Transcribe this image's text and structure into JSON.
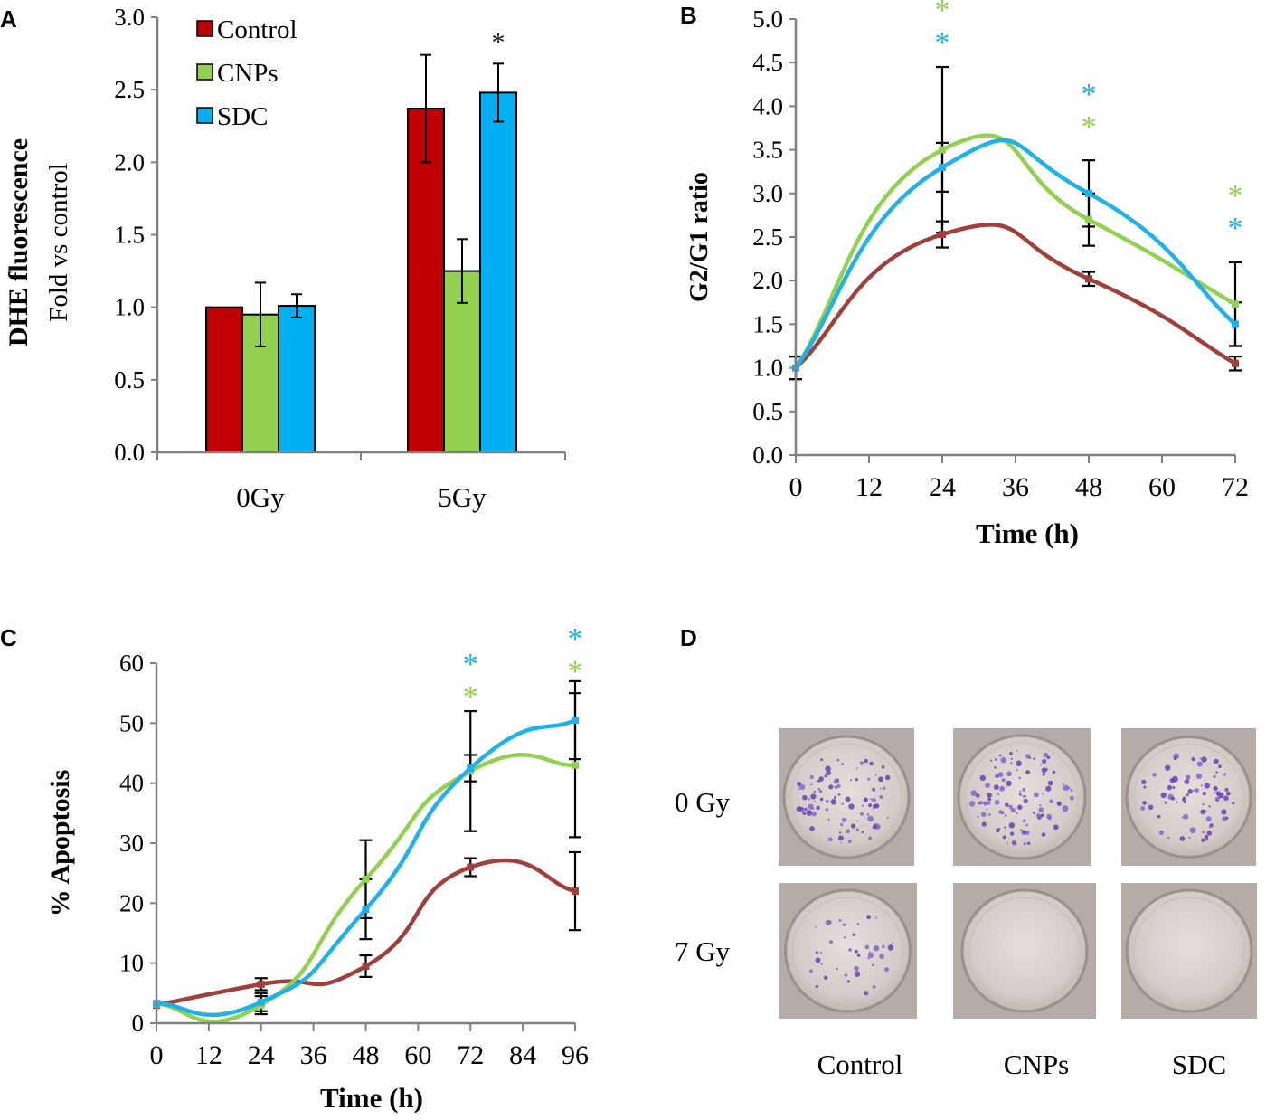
{
  "panel_labels": [
    "A",
    "B",
    "C",
    "D"
  ],
  "colors": {
    "control_bar": "#c00000",
    "cnps_bar": "#92d050",
    "sdc_bar": "#00b0f0",
    "control_line": "#a0403a",
    "cnps_line": "#92d050",
    "sdc_line": "#1fb1ea",
    "axis": "#808080"
  },
  "chart_data": [
    {
      "panel": "A",
      "type": "bar",
      "ylabel_bold": "DHE fluorescence",
      "ylabel_sub": "Fold vs control",
      "xlabel": "",
      "ylim": [
        0,
        3.0
      ],
      "yticks": [
        "0.0",
        "0.5",
        "1.0",
        "1.5",
        "2.0",
        "2.5",
        "3.0"
      ],
      "categories": [
        "0Gy",
        "5Gy"
      ],
      "legend": [
        "Control",
        "CNPs",
        "SDC"
      ],
      "series": [
        {
          "name": "Control",
          "values": [
            1.0,
            2.37
          ],
          "errors": [
            0.0,
            0.37
          ]
        },
        {
          "name": "CNPs",
          "values": [
            0.95,
            1.25
          ],
          "errors": [
            0.22,
            0.22
          ]
        },
        {
          "name": "SDC",
          "values": [
            1.01,
            2.48
          ],
          "errors": [
            0.08,
            0.2
          ]
        }
      ],
      "annotations": [
        {
          "text": "*",
          "category": "5Gy",
          "series": "SDC",
          "color": "#1a1a1a"
        }
      ]
    },
    {
      "panel": "B",
      "type": "line",
      "ylabel": "G2/G1  ratio",
      "xlabel": "Time (h)",
      "xlim": [
        0,
        72
      ],
      "ylim": [
        0,
        5.0
      ],
      "xticks": [
        "0",
        "12",
        "24",
        "36",
        "48",
        "60",
        "72"
      ],
      "yticks": [
        "0.0",
        "0.5",
        "1.0",
        "1.5",
        "2.0",
        "2.5",
        "3.0",
        "3.5",
        "4.0",
        "4.5",
        "5.0"
      ],
      "series": [
        {
          "name": "Control",
          "x": [
            0,
            24,
            48,
            72
          ],
          "y": [
            1.0,
            2.53,
            2.02,
            1.05
          ],
          "errors": [
            0.13,
            0.15,
            0.08,
            0.08
          ]
        },
        {
          "name": "CNPs",
          "x": [
            0,
            24,
            48,
            72
          ],
          "y": [
            1.0,
            3.5,
            2.7,
            1.73
          ],
          "errors": [
            0.13,
            0.95,
            0.3,
            0.48
          ]
        },
        {
          "name": "SDC",
          "x": [
            0,
            24,
            48,
            72
          ],
          "y": [
            1.0,
            3.3,
            3.0,
            1.5
          ],
          "errors": [
            0.13,
            0.28,
            0.38,
            0.25
          ]
        }
      ],
      "annotations": [
        {
          "text": "*",
          "x": 24,
          "row": 0,
          "series": "CNPs"
        },
        {
          "text": "*",
          "x": 24,
          "row": 1,
          "series": "SDC"
        },
        {
          "text": "*",
          "x": 48,
          "row": 0,
          "series": "SDC"
        },
        {
          "text": "*",
          "x": 48,
          "row": 1,
          "series": "CNPs"
        },
        {
          "text": "*",
          "x": 72,
          "row": 0,
          "series": "CNPs"
        },
        {
          "text": "*",
          "x": 72,
          "row": 1,
          "series": "SDC"
        }
      ]
    },
    {
      "panel": "C",
      "type": "line",
      "ylabel": "% Apoptosis",
      "xlabel": "Time (h)",
      "xlim": [
        0,
        96
      ],
      "ylim": [
        0,
        60
      ],
      "xticks": [
        "0",
        "12",
        "24",
        "36",
        "48",
        "60",
        "72",
        "84",
        "96"
      ],
      "yticks": [
        "0",
        "10",
        "20",
        "30",
        "40",
        "50",
        "60"
      ],
      "series": [
        {
          "name": "Control",
          "x": [
            0,
            24,
            48,
            72,
            96
          ],
          "y": [
            3.0,
            6.5,
            9.5,
            26.0,
            22.0
          ],
          "errors": [
            0.0,
            1.0,
            1.8,
            1.5,
            6.5
          ]
        },
        {
          "name": "CNPs",
          "x": [
            0,
            24,
            48,
            72,
            96
          ],
          "y": [
            3.2,
            3.0,
            24.0,
            42.0,
            43.0
          ],
          "errors": [
            0.0,
            1.5,
            6.5,
            10.0,
            12.0
          ]
        },
        {
          "name": "SDC",
          "x": [
            0,
            24,
            48,
            72,
            96
          ],
          "y": [
            3.3,
            3.5,
            19.0,
            42.5,
            50.5
          ],
          "errors": [
            0.0,
            1.5,
            5.0,
            2.2,
            6.5
          ]
        }
      ],
      "annotations": [
        {
          "text": "*",
          "x": 72,
          "row": 0,
          "series": "SDC"
        },
        {
          "text": "*",
          "x": 72,
          "row": 1,
          "series": "CNPs"
        },
        {
          "text": "*",
          "x": 96,
          "row": 0,
          "series": "SDC"
        },
        {
          "text": "*",
          "x": 96,
          "row": 1,
          "series": "CNPs"
        }
      ]
    }
  ],
  "panel_d": {
    "row_labels": [
      "0 Gy",
      "7 Gy"
    ],
    "column_labels": [
      "Control",
      "CNPs",
      "SDC"
    ],
    "colony_density": [
      [
        0.85,
        0.95,
        0.7
      ],
      [
        0.35,
        0.0,
        0.0
      ]
    ]
  }
}
